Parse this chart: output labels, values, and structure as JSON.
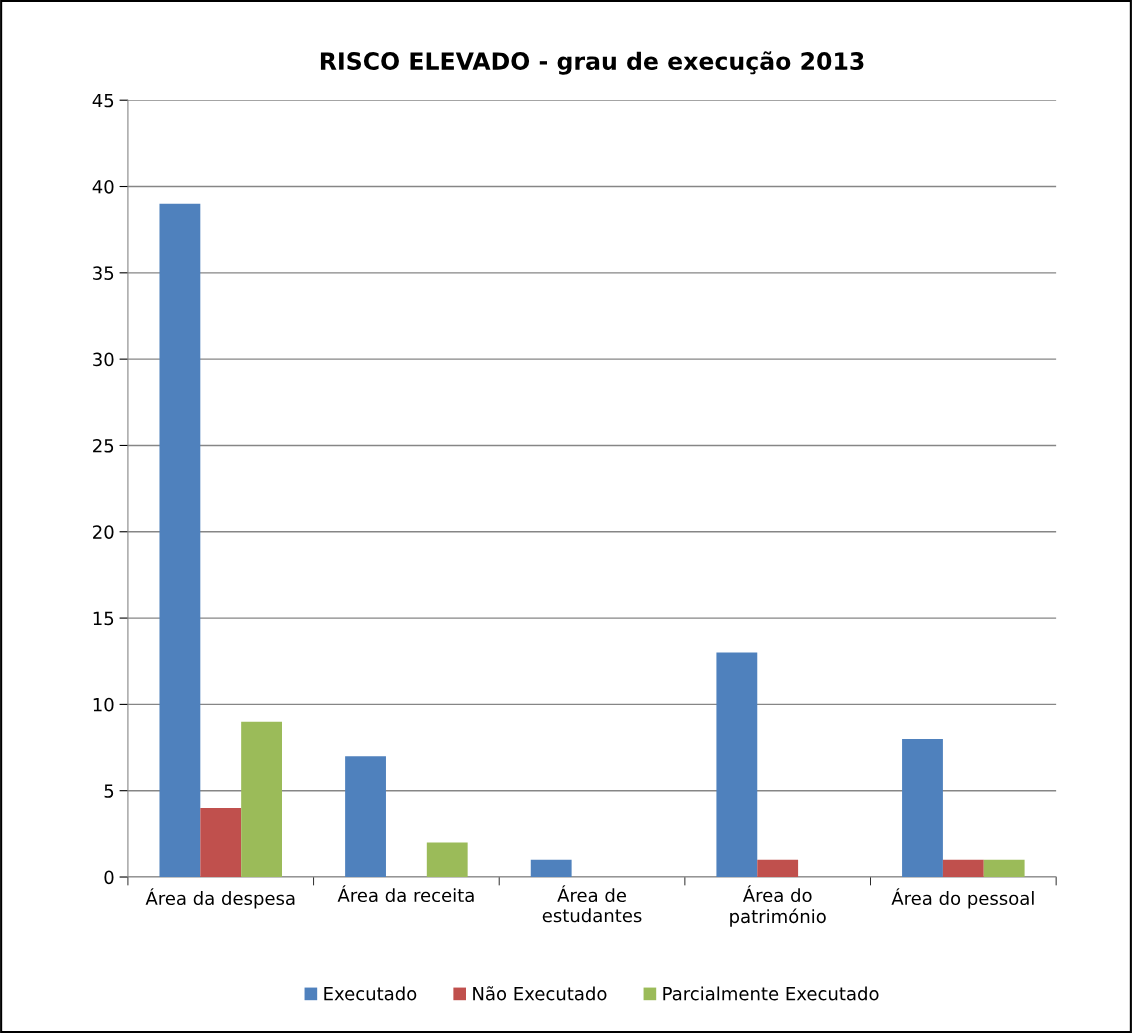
{
  "chart_data": {
    "type": "bar",
    "title": "RISCO ELEVADO - grau de execução 2013",
    "categories": [
      "Área da despesa",
      "Área da receita",
      "Área de estudantes",
      "Área do património",
      "Área do pessoal"
    ],
    "series": [
      {
        "name": "Executado",
        "color": "#4f81bd",
        "values": [
          39,
          7,
          1,
          13,
          8
        ]
      },
      {
        "name": "Não Executado",
        "color": "#c0504d",
        "values": [
          4,
          0,
          0,
          1,
          1
        ]
      },
      {
        "name": "Parcialmente Executado",
        "color": "#9bbb59",
        "values": [
          9,
          2,
          0,
          0,
          1
        ]
      }
    ],
    "ylim": [
      0,
      45
    ],
    "yticks": [
      0,
      5,
      10,
      15,
      20,
      25,
      30,
      35,
      40,
      45
    ],
    "grid": "y",
    "legend": "bottom"
  }
}
